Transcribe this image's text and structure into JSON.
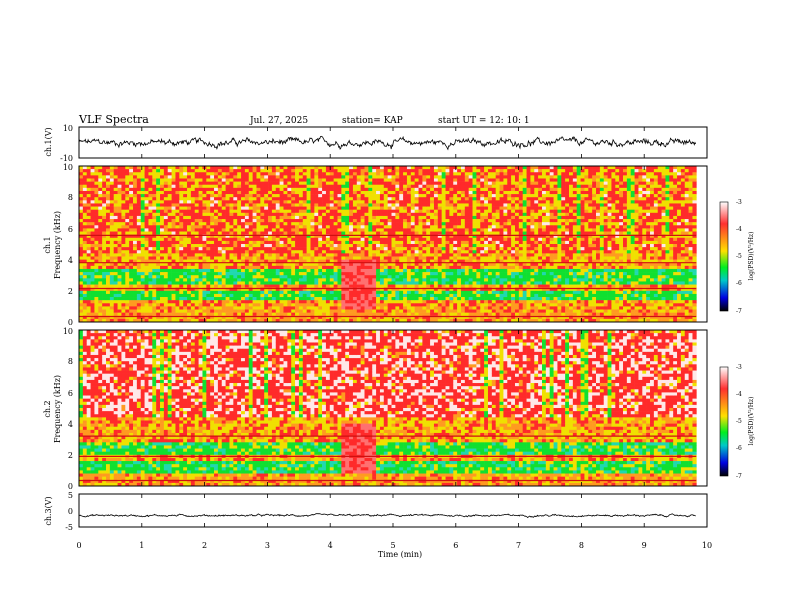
{
  "header": {
    "title": "VLF Spectra",
    "date": "Jul. 27, 2025",
    "station": "station= KAP",
    "start_ut": "start  UT =   12: 10: 1"
  },
  "colors": {
    "spectrogram_scale": [
      "#ffffff",
      "#ff3030",
      "#ffe000",
      "#00ee20",
      "#00c8c8",
      "#0000e0",
      "#000000"
    ]
  },
  "chart_data": [
    {
      "id": "ch1-waveform",
      "type": "line",
      "ylabel": "ch.1(V)",
      "ylim": [
        -10,
        10
      ],
      "yticks": [
        "10",
        "-10"
      ],
      "xlim": [
        0,
        10
      ],
      "x_extent": [
        0,
        9.83
      ],
      "mean": 0,
      "amplitude": 3
    },
    {
      "id": "ch1-spectrogram",
      "type": "heatmap",
      "ylabel_top": "ch.1",
      "ylabel": "Frequency (kHz)",
      "ylim": [
        0,
        10
      ],
      "yticks": [
        "0",
        "2",
        "4",
        "6",
        "8",
        "10"
      ],
      "xlim": [
        0,
        10
      ],
      "x_extent": [
        0,
        9.83
      ],
      "low_power_bands_kHz": [
        [
          1.4,
          2.0
        ],
        [
          2.4,
          3.3
        ]
      ],
      "line_tones_kHz": [
        0.35,
        2.15,
        3.8,
        5.55
      ],
      "quiet_interval_min": [
        4.2,
        4.75
      ],
      "colorbar": {
        "label": "log(PSD)(V²/Hz)",
        "ticks": [
          "-3",
          "-4",
          "-5",
          "-6",
          "-7"
        ],
        "range": [
          -7,
          -3
        ]
      }
    },
    {
      "id": "ch2-spectrogram",
      "type": "heatmap",
      "ylabel_top": "ch.2",
      "ylabel": "Frequency (kHz)",
      "ylim": [
        0,
        10
      ],
      "yticks": [
        "0",
        "2",
        "4",
        "6",
        "8",
        "10"
      ],
      "xlim": [
        0,
        10
      ],
      "x_extent": [
        0,
        9.83
      ],
      "low_power_bands_kHz": [
        [
          0.8,
          1.7
        ],
        [
          2.0,
          2.9
        ]
      ],
      "line_tones_kHz": [
        0.35,
        1.9,
        3.2
      ],
      "quiet_interval_min": [
        4.2,
        4.75
      ],
      "colorbar": {
        "label": "log(PSD)(V²/Hz)",
        "ticks": [
          "-3",
          "-4",
          "-5",
          "-6",
          "-7"
        ],
        "range": [
          -7,
          -3
        ]
      }
    },
    {
      "id": "ch3-waveform",
      "type": "line",
      "ylabel": "ch.3(V)",
      "ylim": [
        -5,
        5
      ],
      "yticks": [
        "5",
        "0",
        "-5"
      ],
      "xlim": [
        0,
        10
      ],
      "x_extent": [
        0,
        9.83
      ],
      "mean": -1.5,
      "amplitude": 0.4,
      "xlabel": "Time (min)",
      "xticks": [
        "0",
        "1",
        "2",
        "3",
        "4",
        "5",
        "6",
        "7",
        "8",
        "9",
        "10"
      ]
    }
  ]
}
